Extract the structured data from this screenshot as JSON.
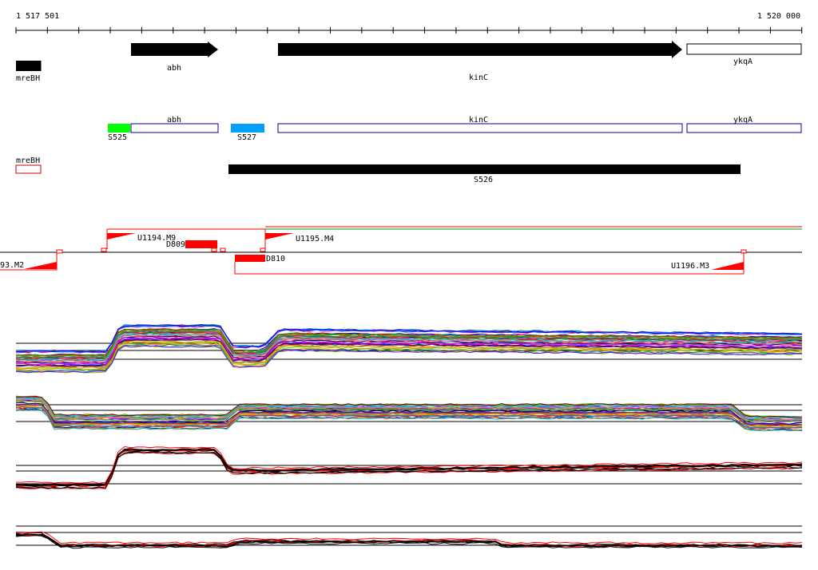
{
  "ruler": {
    "start_label": "1 517 501",
    "end_label": "1 520 000"
  },
  "genes": {
    "mreBH": "mreBH",
    "abh": "abh",
    "kinC": "kinC",
    "ykqA": "ykqA"
  },
  "segments": {
    "S525": "S525",
    "S527": "S527",
    "S526": "S526",
    "abh": "abh",
    "kinC": "kinC",
    "ykqA": "ykqA",
    "mreBH": "mreBH"
  },
  "features": {
    "U1194": "U1194.M9",
    "U1195": "U1195.M4",
    "U1196": "U1196.M3",
    "U1193": "93.M2",
    "D809": "D809",
    "D810": "D810"
  },
  "colors": {
    "gene": "#000000",
    "segment_outline": "#00009c",
    "segment_green": "#00ff00",
    "segment_blue": "#00a0ff",
    "feature_red": "#ff0000",
    "profile_red": "#ff0000"
  }
}
